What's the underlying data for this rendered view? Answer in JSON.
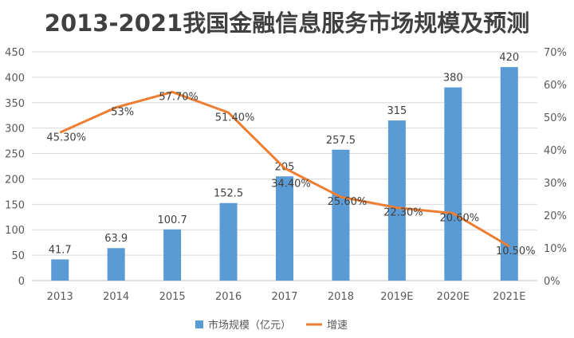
{
  "chart_data": {
    "type": "bar+line",
    "title": "2013-2021我国金融信息服务市场规模及预测",
    "categories": [
      "2013",
      "2014",
      "2015",
      "2016",
      "2017",
      "2018",
      "2019E",
      "2020E",
      "2021E"
    ],
    "series": [
      {
        "name": "市场规模（亿元）",
        "type": "bar",
        "axis": "left",
        "color": "#5B9BD5",
        "values": [
          41.7,
          63.9,
          100.7,
          152.5,
          205,
          257.5,
          315,
          380,
          420
        ],
        "labels": [
          "41.7",
          "63.9",
          "100.7",
          "152.5",
          "205",
          "257.5",
          "315",
          "380",
          "420"
        ]
      },
      {
        "name": "增速",
        "type": "line",
        "axis": "right",
        "color": "#ED7D31",
        "values": [
          45.3,
          53,
          57.7,
          51.4,
          34.4,
          25.6,
          22.3,
          20.6,
          10.5
        ],
        "labels": [
          "45.30%",
          "53%",
          "57.70%",
          "51.40%",
          "34.40%",
          "25.60%",
          "22.30%",
          "20.60%",
          "10.50%"
        ]
      }
    ],
    "ylim": [
      0,
      450
    ],
    "yticks": [
      "0",
      "50",
      "100",
      "150",
      "200",
      "250",
      "300",
      "350",
      "400",
      "450"
    ],
    "y2lim": [
      0,
      70
    ],
    "y2ticks": [
      "0%",
      "10%",
      "20%",
      "30%",
      "40%",
      "50%",
      "60%",
      "70%"
    ],
    "grid": true,
    "legend": "bottom"
  }
}
